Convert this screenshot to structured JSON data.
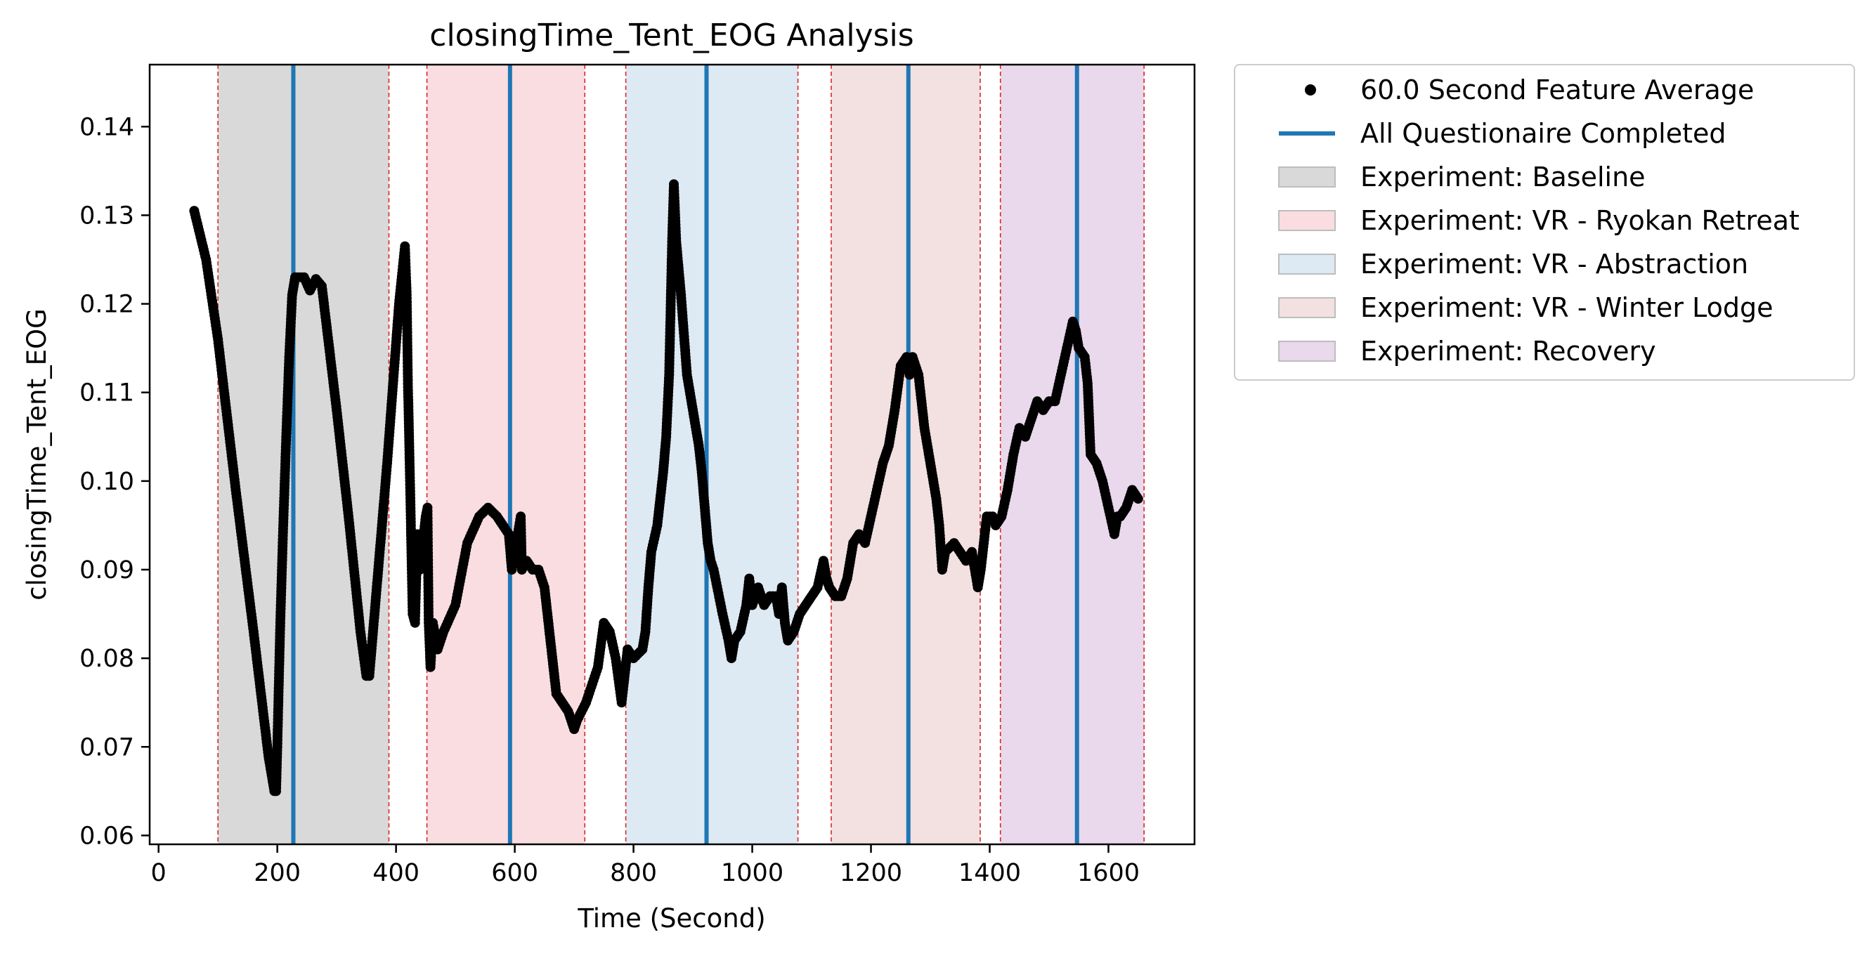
{
  "chart_data": {
    "type": "scatter",
    "title": "closingTime_Tent_EOG Analysis",
    "xlabel": "Time (Second)",
    "ylabel": "closingTime_Tent_EOG",
    "xlim": [
      -15,
      1745
    ],
    "ylim": [
      0.059,
      0.147
    ],
    "xticks": [
      0,
      200,
      400,
      600,
      800,
      1000,
      1200,
      1400,
      1600
    ],
    "yticks": [
      0.06,
      0.07,
      0.08,
      0.09,
      0.1,
      0.11,
      0.12,
      0.13,
      0.14
    ],
    "ytick_labels": [
      "0.06",
      "0.07",
      "0.08",
      "0.09",
      "0.10",
      "0.11",
      "0.12",
      "0.13",
      "0.14"
    ],
    "grid": false,
    "legend_position": "outside-right-top",
    "series": [
      {
        "name": "60.0 Second Feature Average",
        "color": "#000000",
        "marker": "dot",
        "anchors": [
          [
            60,
            0.1305
          ],
          [
            80,
            0.125
          ],
          [
            100,
            0.116
          ],
          [
            130,
            0.099
          ],
          [
            160,
            0.083
          ],
          [
            185,
            0.069
          ],
          [
            195,
            0.065
          ],
          [
            198,
            0.065
          ],
          [
            200,
            0.07
          ],
          [
            205,
            0.084
          ],
          [
            210,
            0.095
          ],
          [
            215,
            0.105
          ],
          [
            220,
            0.114
          ],
          [
            225,
            0.121
          ],
          [
            230,
            0.123
          ],
          [
            245,
            0.123
          ],
          [
            255,
            0.1215
          ],
          [
            265,
            0.1228
          ],
          [
            275,
            0.122
          ],
          [
            300,
            0.108
          ],
          [
            320,
            0.096
          ],
          [
            340,
            0.083
          ],
          [
            350,
            0.078
          ],
          [
            355,
            0.078
          ],
          [
            370,
            0.09
          ],
          [
            385,
            0.102
          ],
          [
            395,
            0.111
          ],
          [
            405,
            0.12
          ],
          [
            415,
            0.1265
          ],
          [
            418,
            0.121
          ],
          [
            420,
            0.111
          ],
          [
            422,
            0.105
          ],
          [
            425,
            0.095
          ],
          [
            428,
            0.085
          ],
          [
            432,
            0.084
          ],
          [
            436,
            0.094
          ],
          [
            440,
            0.09
          ],
          [
            445,
            0.093
          ],
          [
            450,
            0.096
          ],
          [
            453,
            0.097
          ],
          [
            455,
            0.084
          ],
          [
            458,
            0.079
          ],
          [
            462,
            0.084
          ],
          [
            470,
            0.081
          ],
          [
            480,
            0.083
          ],
          [
            500,
            0.086
          ],
          [
            520,
            0.093
          ],
          [
            540,
            0.096
          ],
          [
            555,
            0.097
          ],
          [
            570,
            0.096
          ],
          [
            590,
            0.094
          ],
          [
            595,
            0.09
          ],
          [
            610,
            0.096
          ],
          [
            612,
            0.09
          ],
          [
            620,
            0.091
          ],
          [
            630,
            0.09
          ],
          [
            640,
            0.09
          ],
          [
            650,
            0.088
          ],
          [
            660,
            0.082
          ],
          [
            670,
            0.076
          ],
          [
            680,
            0.075
          ],
          [
            690,
            0.074
          ],
          [
            700,
            0.072
          ],
          [
            705,
            0.073
          ],
          [
            720,
            0.075
          ],
          [
            740,
            0.079
          ],
          [
            750,
            0.084
          ],
          [
            760,
            0.083
          ],
          [
            770,
            0.08
          ],
          [
            780,
            0.075
          ],
          [
            790,
            0.081
          ],
          [
            800,
            0.08
          ],
          [
            815,
            0.081
          ],
          [
            820,
            0.083
          ],
          [
            825,
            0.088
          ],
          [
            830,
            0.092
          ],
          [
            840,
            0.095
          ],
          [
            850,
            0.101
          ],
          [
            855,
            0.105
          ],
          [
            860,
            0.112
          ],
          [
            865,
            0.127
          ],
          [
            868,
            0.1335
          ],
          [
            872,
            0.127
          ],
          [
            880,
            0.121
          ],
          [
            890,
            0.112
          ],
          [
            900,
            0.108
          ],
          [
            910,
            0.104
          ],
          [
            915,
            0.101
          ],
          [
            920,
            0.097
          ],
          [
            925,
            0.093
          ],
          [
            930,
            0.091
          ],
          [
            935,
            0.09
          ],
          [
            950,
            0.085
          ],
          [
            960,
            0.082
          ],
          [
            965,
            0.08
          ],
          [
            970,
            0.082
          ],
          [
            980,
            0.083
          ],
          [
            990,
            0.086
          ],
          [
            995,
            0.089
          ],
          [
            1000,
            0.086
          ],
          [
            1010,
            0.088
          ],
          [
            1020,
            0.086
          ],
          [
            1030,
            0.087
          ],
          [
            1040,
            0.087
          ],
          [
            1045,
            0.085
          ],
          [
            1050,
            0.088
          ],
          [
            1055,
            0.084
          ],
          [
            1060,
            0.082
          ],
          [
            1070,
            0.083
          ],
          [
            1080,
            0.085
          ],
          [
            1090,
            0.086
          ],
          [
            1100,
            0.087
          ],
          [
            1110,
            0.088
          ],
          [
            1120,
            0.091
          ],
          [
            1125,
            0.089
          ],
          [
            1130,
            0.088
          ],
          [
            1140,
            0.087
          ],
          [
            1150,
            0.087
          ],
          [
            1160,
            0.089
          ],
          [
            1170,
            0.093
          ],
          [
            1180,
            0.094
          ],
          [
            1190,
            0.093
          ],
          [
            1200,
            0.096
          ],
          [
            1210,
            0.099
          ],
          [
            1220,
            0.102
          ],
          [
            1230,
            0.104
          ],
          [
            1240,
            0.108
          ],
          [
            1250,
            0.113
          ],
          [
            1260,
            0.114
          ],
          [
            1265,
            0.112
          ],
          [
            1270,
            0.114
          ],
          [
            1280,
            0.112
          ],
          [
            1290,
            0.106
          ],
          [
            1300,
            0.102
          ],
          [
            1310,
            0.098
          ],
          [
            1315,
            0.095
          ],
          [
            1320,
            0.09
          ],
          [
            1325,
            0.092
          ],
          [
            1340,
            0.093
          ],
          [
            1360,
            0.091
          ],
          [
            1370,
            0.092
          ],
          [
            1380,
            0.088
          ],
          [
            1385,
            0.09
          ],
          [
            1395,
            0.096
          ],
          [
            1405,
            0.096
          ],
          [
            1410,
            0.095
          ],
          [
            1420,
            0.096
          ],
          [
            1430,
            0.099
          ],
          [
            1440,
            0.103
          ],
          [
            1450,
            0.106
          ],
          [
            1460,
            0.105
          ],
          [
            1470,
            0.107
          ],
          [
            1480,
            0.109
          ],
          [
            1490,
            0.108
          ],
          [
            1500,
            0.109
          ],
          [
            1510,
            0.109
          ],
          [
            1520,
            0.112
          ],
          [
            1530,
            0.115
          ],
          [
            1540,
            0.118
          ],
          [
            1545,
            0.117
          ],
          [
            1550,
            0.115
          ],
          [
            1560,
            0.114
          ],
          [
            1565,
            0.111
          ],
          [
            1570,
            0.103
          ],
          [
            1580,
            0.102
          ],
          [
            1590,
            0.1
          ],
          [
            1600,
            0.097
          ],
          [
            1610,
            0.094
          ],
          [
            1615,
            0.096
          ],
          [
            1620,
            0.096
          ],
          [
            1630,
            0.097
          ],
          [
            1640,
            0.099
          ],
          [
            1650,
            0.098
          ]
        ]
      }
    ],
    "questionnaire_lines": {
      "name": "All Questionaire Completed",
      "color": "#1f77b4",
      "x": [
        227,
        592,
        923,
        1263,
        1547
      ]
    },
    "phases": [
      {
        "name": "Experiment: Baseline",
        "start": 100,
        "end": 388,
        "color": "#d9d9d9"
      },
      {
        "name": "Experiment: VR - Ryokan Retreat",
        "start": 452,
        "end": 718,
        "color": "#f9dde0"
      },
      {
        "name": "Experiment: VR - Abstraction",
        "start": 787,
        "end": 1077,
        "color": "#dde9f3"
      },
      {
        "name": "Experiment: VR - Winter Lodge",
        "start": 1133,
        "end": 1384,
        "color": "#f3e0e0"
      },
      {
        "name": "Experiment: Recovery",
        "start": 1418,
        "end": 1660,
        "color": "#ead8ec"
      }
    ],
    "phase_boundary_color": "#d62728",
    "legend": [
      {
        "label": "60.0 Second Feature Average",
        "kind": "dot",
        "color": "#000000"
      },
      {
        "label": "All Questionaire Completed",
        "kind": "line",
        "color": "#1f77b4"
      },
      {
        "label": "Experiment: Baseline",
        "kind": "patch",
        "color": "#d9d9d9"
      },
      {
        "label": "Experiment: VR - Ryokan Retreat",
        "kind": "patch",
        "color": "#f9dde0"
      },
      {
        "label": "Experiment: VR - Abstraction",
        "kind": "patch",
        "color": "#dde9f3"
      },
      {
        "label": "Experiment: VR - Winter Lodge",
        "kind": "patch",
        "color": "#f3e0e0"
      },
      {
        "label": "Experiment: Recovery",
        "kind": "patch",
        "color": "#ead8ec"
      }
    ]
  }
}
